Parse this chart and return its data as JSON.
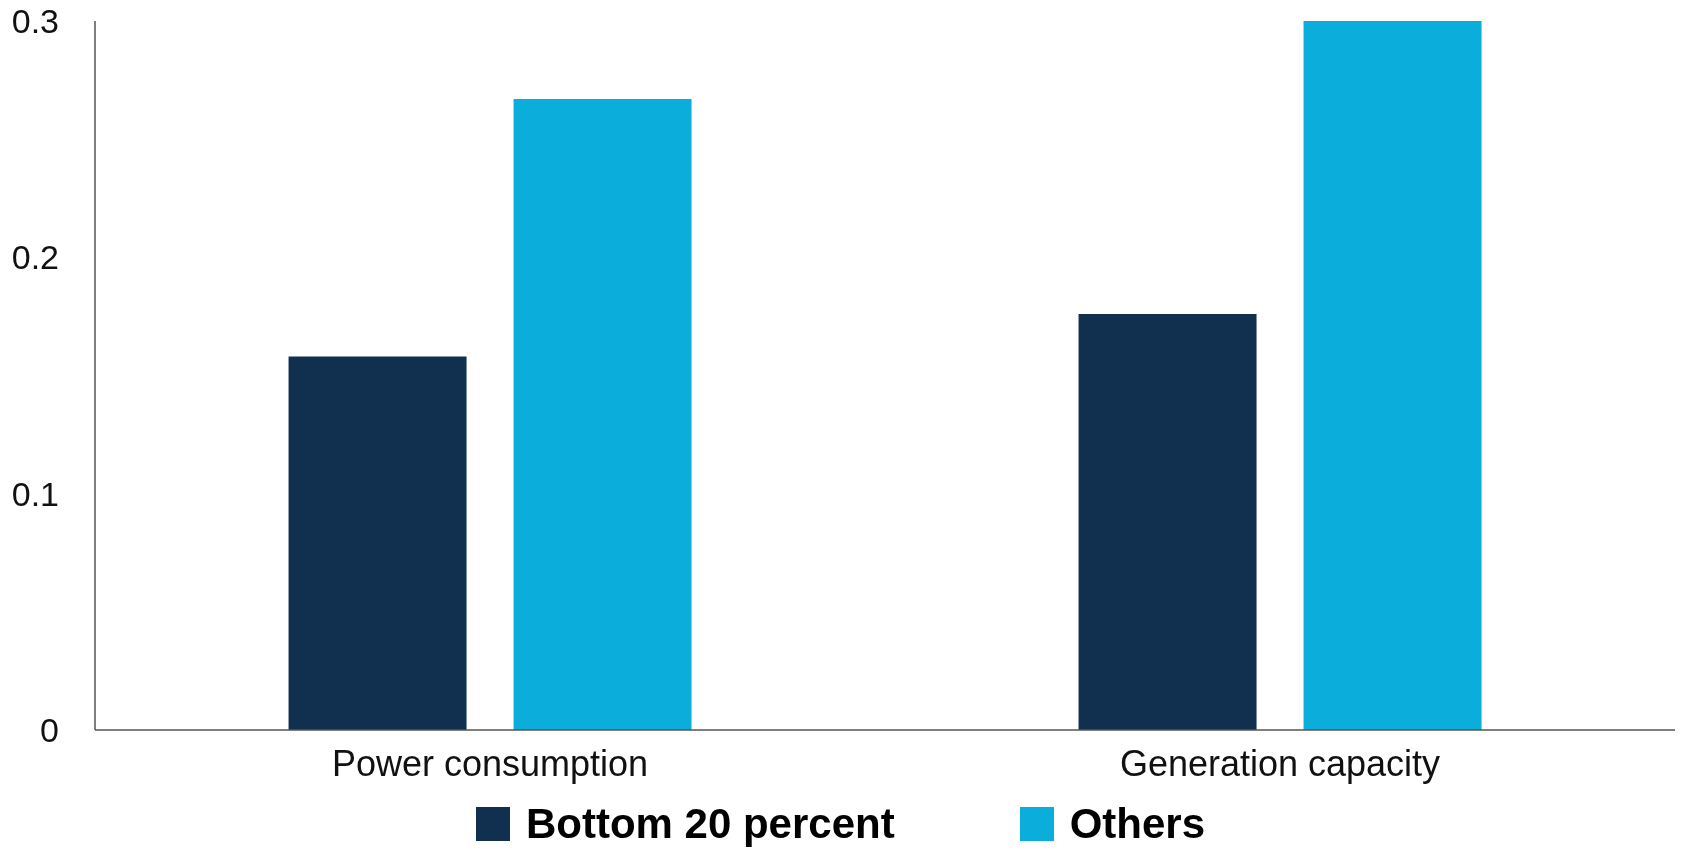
{
  "chart_data": {
    "type": "bar",
    "categories": [
      "Power consumption",
      "Generation capacity"
    ],
    "series": [
      {
        "name": "Bottom 20 percent",
        "color": "#11304f",
        "values": [
          0.158,
          0.176
        ]
      },
      {
        "name": "Others",
        "color": "#0badda",
        "values": [
          0.267,
          0.3
        ]
      }
    ],
    "ylim": [
      0,
      0.3
    ],
    "yticks": [
      0,
      0.1,
      0.2,
      0.3
    ],
    "legend": "bottom"
  }
}
